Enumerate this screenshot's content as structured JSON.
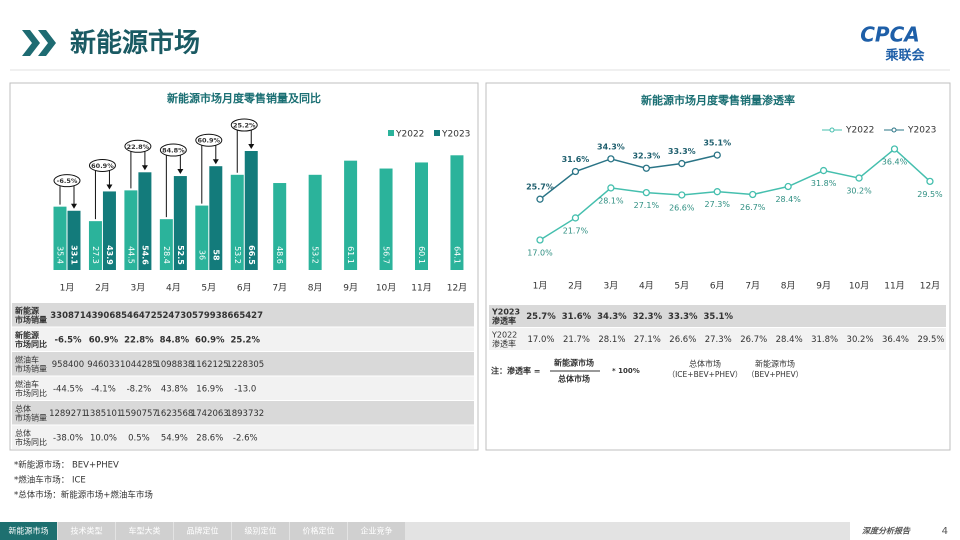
{
  "header": {
    "title": "新能源市场",
    "logo": "CPCA",
    "logo_cn": "乘联会"
  },
  "chart_data": [
    {
      "type": "bar",
      "title": "新能源市场月度零售销量及同比",
      "categories": [
        "1月",
        "2月",
        "3月",
        "4月",
        "5月",
        "6月",
        "7月",
        "8月",
        "9月",
        "10月",
        "11月",
        "12月"
      ],
      "series": [
        {
          "name": "Y2022",
          "color": "#2bb39b",
          "values": [
            35.4,
            27.3,
            44.5,
            28.4,
            36.0,
            53.2,
            48.6,
            53.2,
            61.1,
            56.7,
            60.1,
            64.1
          ]
        },
        {
          "name": "Y2023",
          "color": "#137b7b",
          "values": [
            33.1,
            43.9,
            54.6,
            52.5,
            58.0,
            66.5,
            null,
            null,
            null,
            null,
            null,
            null
          ]
        }
      ],
      "annotations": [
        "-6.5%",
        "60.9%",
        "22.8%",
        "84.8%",
        "60.9%",
        "25.2%"
      ]
    },
    {
      "type": "line",
      "title": "新能源市场月度零售销量渗透率",
      "categories": [
        "1月",
        "2月",
        "3月",
        "4月",
        "5月",
        "6月",
        "7月",
        "8月",
        "9月",
        "10月",
        "11月",
        "12月"
      ],
      "series": [
        {
          "name": "Y2022",
          "color": "#45bfae",
          "values": [
            17.0,
            21.7,
            28.1,
            27.1,
            26.6,
            27.3,
            26.7,
            28.4,
            31.8,
            30.2,
            36.4,
            29.5
          ],
          "value_labels": [
            "17.0%",
            "21.7%",
            "28.1%",
            "27.1%",
            "26.6%",
            "27.3%",
            "26.7%",
            "28.4%",
            "31.8%",
            "30.2%",
            "36.4%",
            "29.5%"
          ]
        },
        {
          "name": "Y2023",
          "color": "#2a7486",
          "values": [
            25.7,
            31.6,
            34.3,
            32.3,
            33.3,
            35.1,
            null,
            null,
            null,
            null,
            null,
            null
          ],
          "value_labels": [
            "25.7%",
            "31.6%",
            "34.3%",
            "32.3%",
            "33.3%",
            "35.1%",
            null,
            null,
            null,
            null,
            null,
            null
          ]
        }
      ]
    }
  ],
  "left_table": {
    "rows": [
      {
        "label": [
          "新能源",
          "市场销量"
        ],
        "cells": [
          "330871",
          "439068",
          "546472",
          "524730",
          "579938",
          "665427"
        ]
      },
      {
        "label": [
          "新能源",
          "市场同比"
        ],
        "cells": [
          "-6.5%",
          "60.9%",
          "22.8%",
          "84.8%",
          "60.9%",
          "25.2%"
        ]
      },
      {
        "label": [
          "燃油车",
          "市场销量"
        ],
        "cells": [
          "958400",
          "946033",
          "1044285",
          "1098838",
          "1162125",
          "1228305"
        ]
      },
      {
        "label": [
          "燃油车",
          "市场同比"
        ],
        "cells": [
          "-44.5%",
          "-4.1%",
          "-8.2%",
          "43.8%",
          "16.9%",
          "-13.0"
        ]
      },
      {
        "label": [
          "总体",
          "市场销量"
        ],
        "cells": [
          "1289271",
          "1385101",
          "1590757",
          "1623568",
          "1742063",
          "1893732"
        ]
      },
      {
        "label": [
          "总体",
          "市场同比"
        ],
        "cells": [
          "-38.0%",
          "10.0%",
          "0.5%",
          "54.9%",
          "28.6%",
          "-2.6%"
        ]
      }
    ]
  },
  "right_table": {
    "rows": [
      {
        "label": [
          "Y2023",
          "渗透率"
        ],
        "cells": [
          "25.7%",
          "31.6%",
          "34.3%",
          "32.3%",
          "33.3%",
          "35.1%"
        ]
      },
      {
        "label": [
          "Y2022",
          "渗透率"
        ],
        "cells": [
          "17.0%",
          "21.7%",
          "28.1%",
          "27.1%",
          "26.6%",
          "27.3%",
          "26.7%",
          "28.4%",
          "31.8%",
          "30.2%",
          "36.4%",
          "29.5%"
        ]
      }
    ]
  },
  "formula": {
    "prefix": "注：渗透率 =",
    "numerator": "新能源市场",
    "denominator": "总体市场",
    "suffix": "* 100%",
    "terms": [
      {
        "name": "总体市场",
        "detail": "（ICE+BEV+PHEV）"
      },
      {
        "name": "新能源市场",
        "detail": "（BEV+PHEV）"
      }
    ]
  },
  "footnotes": [
    "*新能源市场： BEV+PHEV",
    "*燃油车市场： ICE",
    "*总体市场：新能源市场+燃油车市场"
  ],
  "nav": [
    "新能源市场",
    "技术类型",
    "车型大类",
    "品牌定位",
    "级别定位",
    "价格定位",
    "企业竞争"
  ],
  "footer": {
    "report": "深度分析报告",
    "page": "4"
  }
}
